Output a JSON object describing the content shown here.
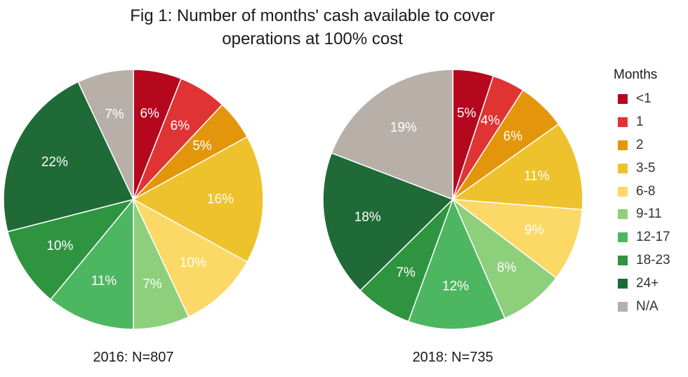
{
  "title_line1": "Fig 1: Number of months' cash available to cover",
  "title_line2": "operations at 100% cost",
  "legend": {
    "title": "Months",
    "items": [
      {
        "label": "<1",
        "color": "#b5081f"
      },
      {
        "label": "1",
        "color": "#e03434"
      },
      {
        "label": "2",
        "color": "#e3960c"
      },
      {
        "label": "3-5",
        "color": "#eec22c"
      },
      {
        "label": "6-8",
        "color": "#fcd966"
      },
      {
        "label": "9-11",
        "color": "#8ecf7c"
      },
      {
        "label": "12-17",
        "color": "#4db661"
      },
      {
        "label": "18-23",
        "color": "#2f9440"
      },
      {
        "label": "24+",
        "color": "#1f6a37"
      },
      {
        "label": "N/A",
        "color": "#b9afa9"
      }
    ]
  },
  "chart_data": [
    {
      "type": "pie",
      "caption": "2016: N=807",
      "categories": [
        "<1",
        "1",
        "2",
        "3-5",
        "6-8",
        "9-11",
        "12-17",
        "18-23",
        "24+",
        "N/A"
      ],
      "values": [
        6,
        6,
        5,
        16,
        10,
        7,
        11,
        10,
        22,
        7
      ],
      "labels": [
        "6%",
        "6%",
        "5%",
        "16%",
        "10%",
        "7%",
        "11%",
        "10%",
        "22%",
        "7%"
      ]
    },
    {
      "type": "pie",
      "caption": "2018: N=735",
      "categories": [
        "<1",
        "1",
        "2",
        "3-5",
        "6-8",
        "9-11",
        "12-17",
        "18-23",
        "24+",
        "N/A"
      ],
      "values": [
        5,
        4,
        6,
        11,
        9,
        8,
        12,
        7,
        18,
        19
      ],
      "labels": [
        "5%",
        "4%",
        "6%",
        "11%",
        "9%",
        "8%",
        "12%",
        "7%",
        "18%",
        "19%"
      ]
    }
  ]
}
